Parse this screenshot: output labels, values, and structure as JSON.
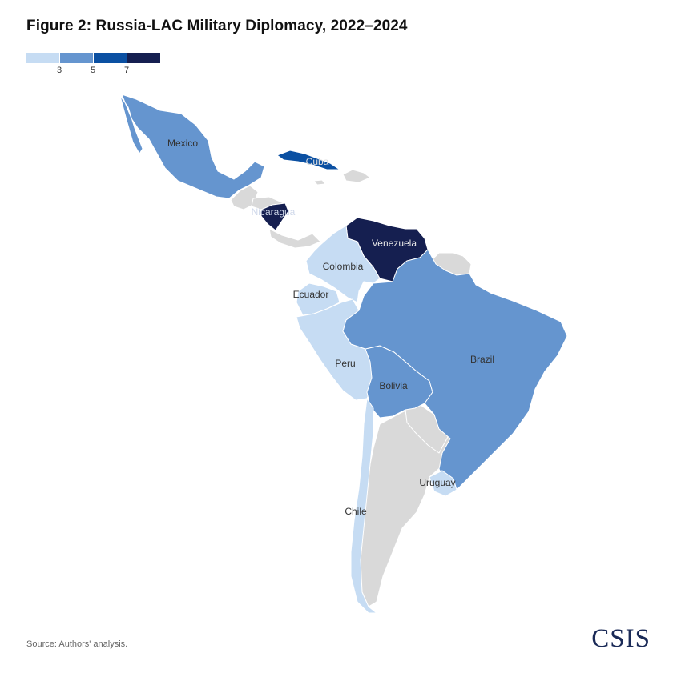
{
  "title": "Figure 2: Russia-LAC Military Diplomacy, 2022–2024",
  "legend": {
    "colors": [
      "#c6dcf3",
      "#6595cf",
      "#0b50a2",
      "#151f50"
    ],
    "ticks": [
      "3",
      "5",
      "7"
    ]
  },
  "chart_data": {
    "type": "choropleth",
    "no_data_color": "#d9d9d9",
    "countries": [
      {
        "name": "Mexico",
        "value": 5
      },
      {
        "name": "Cuba",
        "value": 6
      },
      {
        "name": "Nicaragua",
        "value": 7
      },
      {
        "name": "Venezuela",
        "value": 7
      },
      {
        "name": "Colombia",
        "value": 3
      },
      {
        "name": "Ecuador",
        "value": 3
      },
      {
        "name": "Brazil",
        "value": 5
      },
      {
        "name": "Peru",
        "value": 3
      },
      {
        "name": "Bolivia",
        "value": 5
      },
      {
        "name": "Uruguay",
        "value": 3
      },
      {
        "name": "Chile",
        "value": 3
      }
    ]
  },
  "labels": {
    "mexico": "Mexico",
    "cuba": "Cuba",
    "nicaragua": "Nicaragua",
    "venezuela": "Venezuela",
    "colombia": "Colombia",
    "ecuador": "Ecuador",
    "brazil": "Brazil",
    "peru": "Peru",
    "bolivia": "Bolivia",
    "uruguay": "Uruguay",
    "chile": "Chile"
  },
  "source": "Source: Authors' analysis.",
  "logo": "CSIS"
}
